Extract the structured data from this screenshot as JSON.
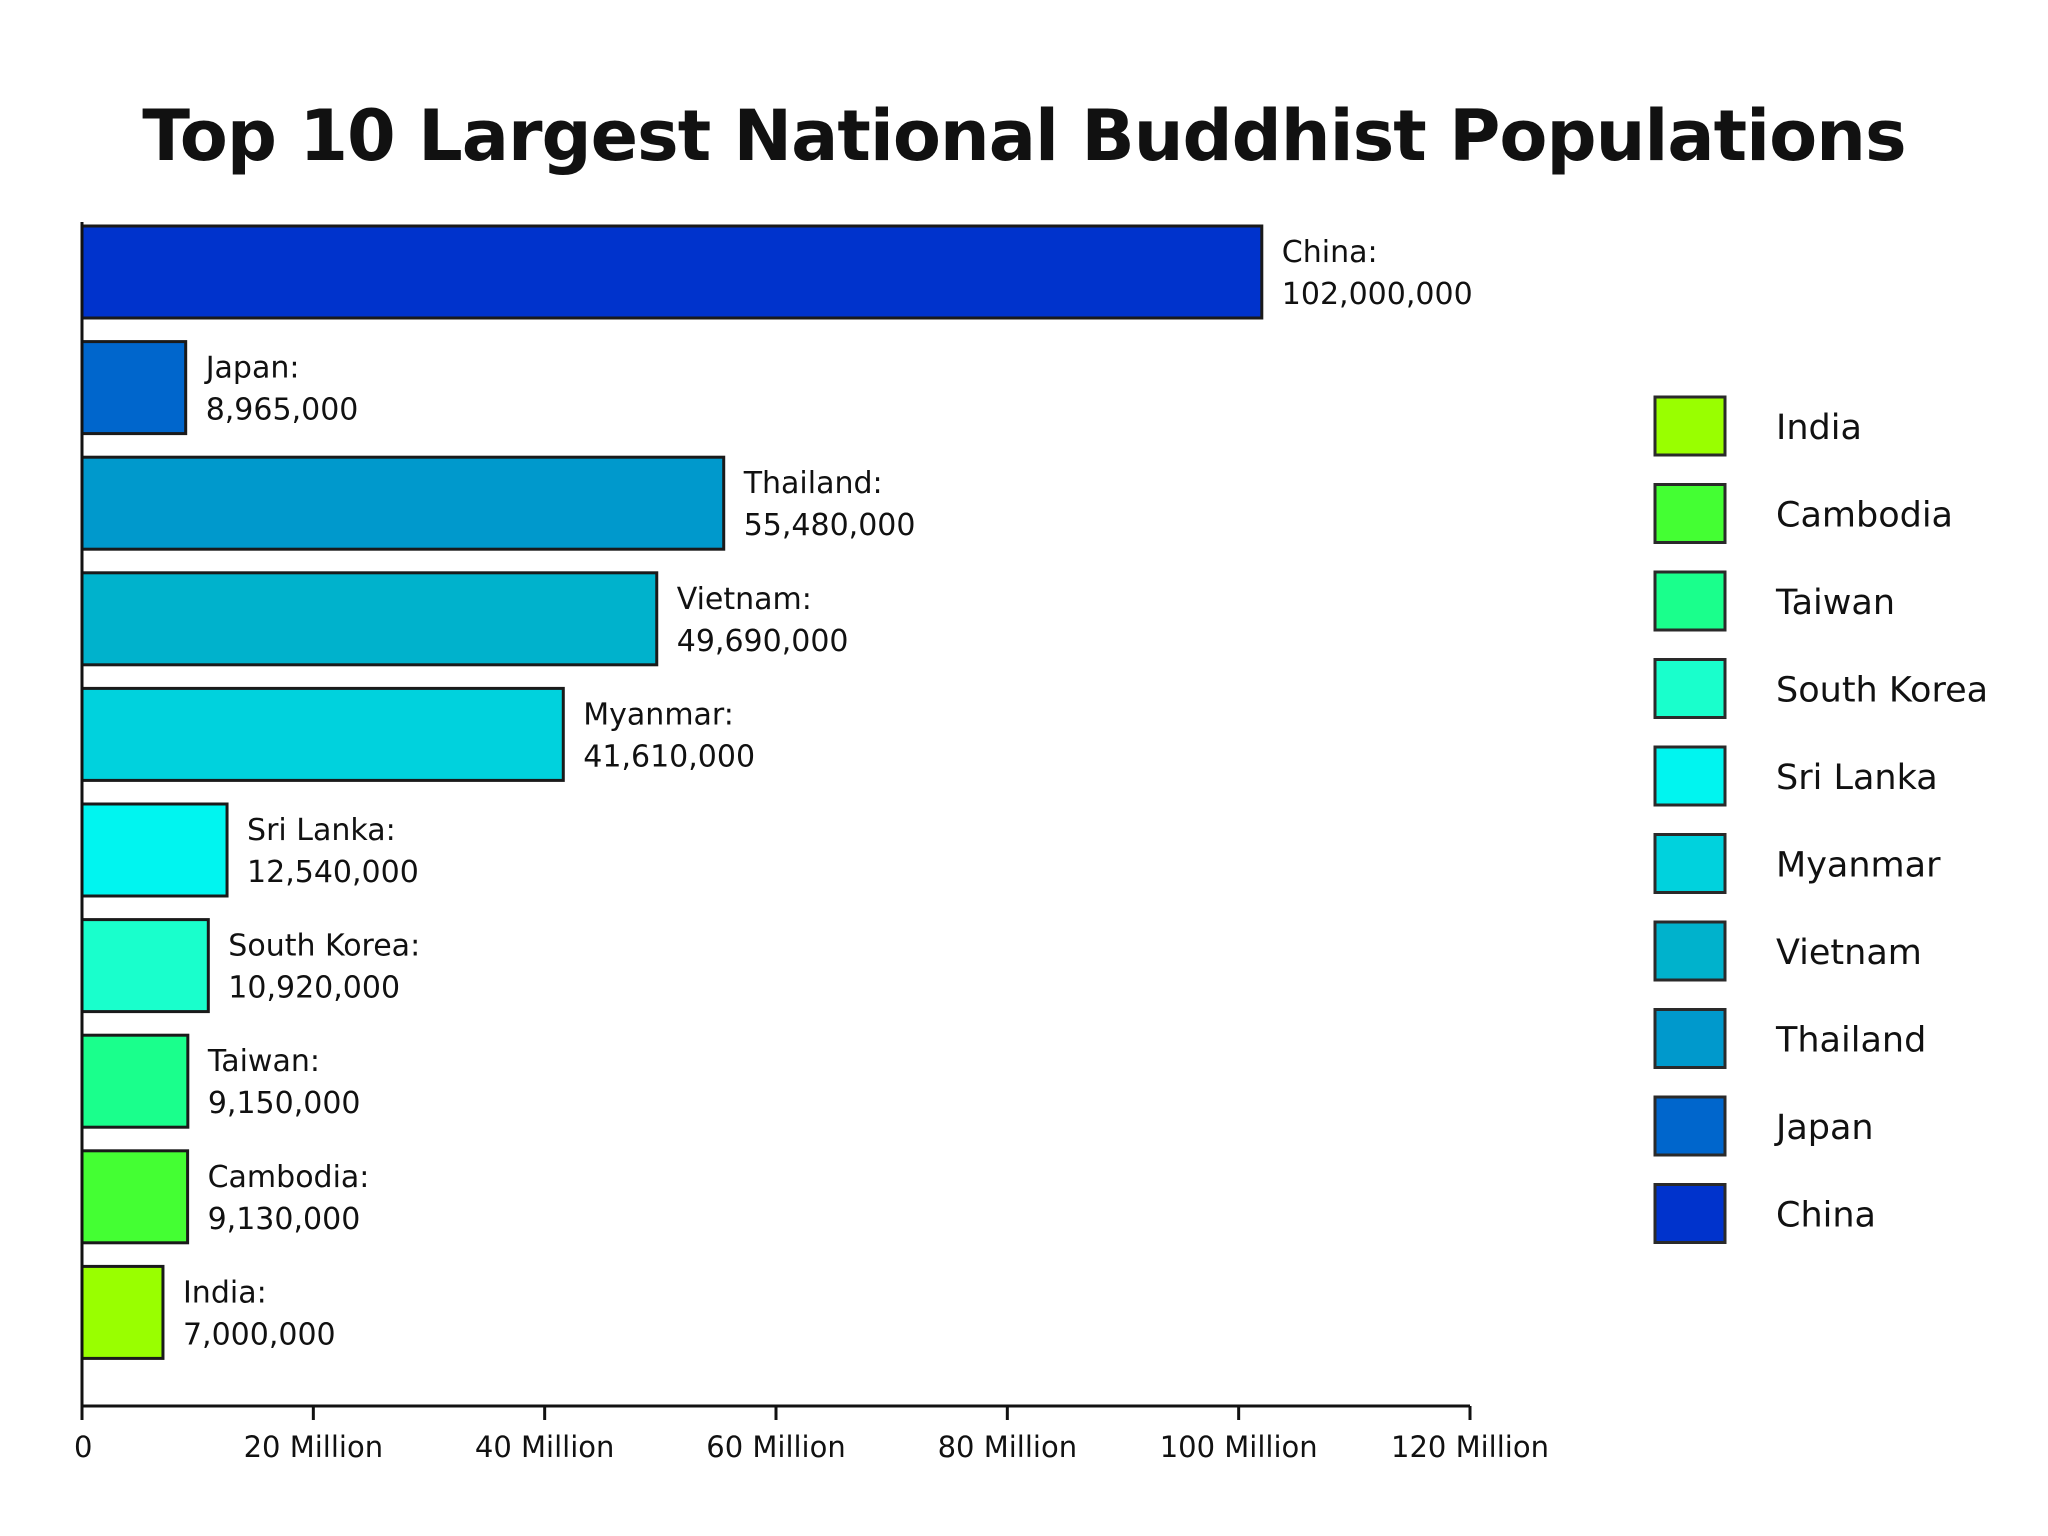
{
  "chart_data": {
    "type": "bar",
    "orientation": "horizontal",
    "title": "Top 10 Largest National Buddhist Populations",
    "xlabel": "",
    "ylabel": "",
    "xlim": [
      0,
      120000000
    ],
    "grid": false,
    "legend_position": "right",
    "x_ticks": [
      {
        "value": 0,
        "label": "0"
      },
      {
        "value": 20000000,
        "label": "20 Million"
      },
      {
        "value": 40000000,
        "label": "40 Million"
      },
      {
        "value": 60000000,
        "label": "60 Million"
      },
      {
        "value": 80000000,
        "label": "80 Million"
      },
      {
        "value": 100000000,
        "label": "100 Million"
      },
      {
        "value": 120000000,
        "label": "120 Million"
      }
    ],
    "bars": [
      {
        "country": "China",
        "value": 102000000,
        "label_name": "China:",
        "label_value": "102,000,000",
        "color": "#0033cc"
      },
      {
        "country": "Japan",
        "value": 8965000,
        "label_name": "Japan:",
        "label_value": "8,965,000",
        "color": "#0066cc"
      },
      {
        "country": "Thailand",
        "value": 55480000,
        "label_name": "Thailand:",
        "label_value": "55,480,000",
        "color": "#0099cc"
      },
      {
        "country": "Vietnam",
        "value": 49690000,
        "label_name": "Vietnam:",
        "label_value": "49,690,000",
        "color": "#00b2cc"
      },
      {
        "country": "Myanmar",
        "value": 41610000,
        "label_name": "Myanmar:",
        "label_value": "41,610,000",
        "color": "#00d2dd"
      },
      {
        "country": "Sri Lanka",
        "value": 12540000,
        "label_name": "Sri Lanka:",
        "label_value": "12,540,000",
        "color": "#00f5f0"
      },
      {
        "country": "South Korea",
        "value": 10920000,
        "label_name": "South Korea:",
        "label_value": "10,920,000",
        "color": "#19ffcc"
      },
      {
        "country": "Taiwan",
        "value": 9150000,
        "label_name": "Taiwan:",
        "label_value": "9,150,000",
        "color": "#1aff8c"
      },
      {
        "country": "Cambodia",
        "value": 9130000,
        "label_name": "Cambodia:",
        "label_value": "9,130,000",
        "color": "#44ff33"
      },
      {
        "country": "India",
        "value": 7000000,
        "label_name": "India:",
        "label_value": "7,000,000",
        "color": "#99ff00"
      }
    ],
    "legend": [
      {
        "name": "India",
        "color": "#99ff00"
      },
      {
        "name": "Cambodia",
        "color": "#44ff33"
      },
      {
        "name": "Taiwan",
        "color": "#1aff8c"
      },
      {
        "name": "South Korea",
        "color": "#19ffcc"
      },
      {
        "name": "Sri Lanka",
        "color": "#00f5f0"
      },
      {
        "name": "Myanmar",
        "color": "#00d2dd"
      },
      {
        "name": "Vietnam",
        "color": "#00b2cc"
      },
      {
        "name": "Thailand",
        "color": "#0099cc"
      },
      {
        "name": "Japan",
        "color": "#0066cc"
      },
      {
        "name": "China",
        "color": "#0033cc"
      }
    ]
  }
}
